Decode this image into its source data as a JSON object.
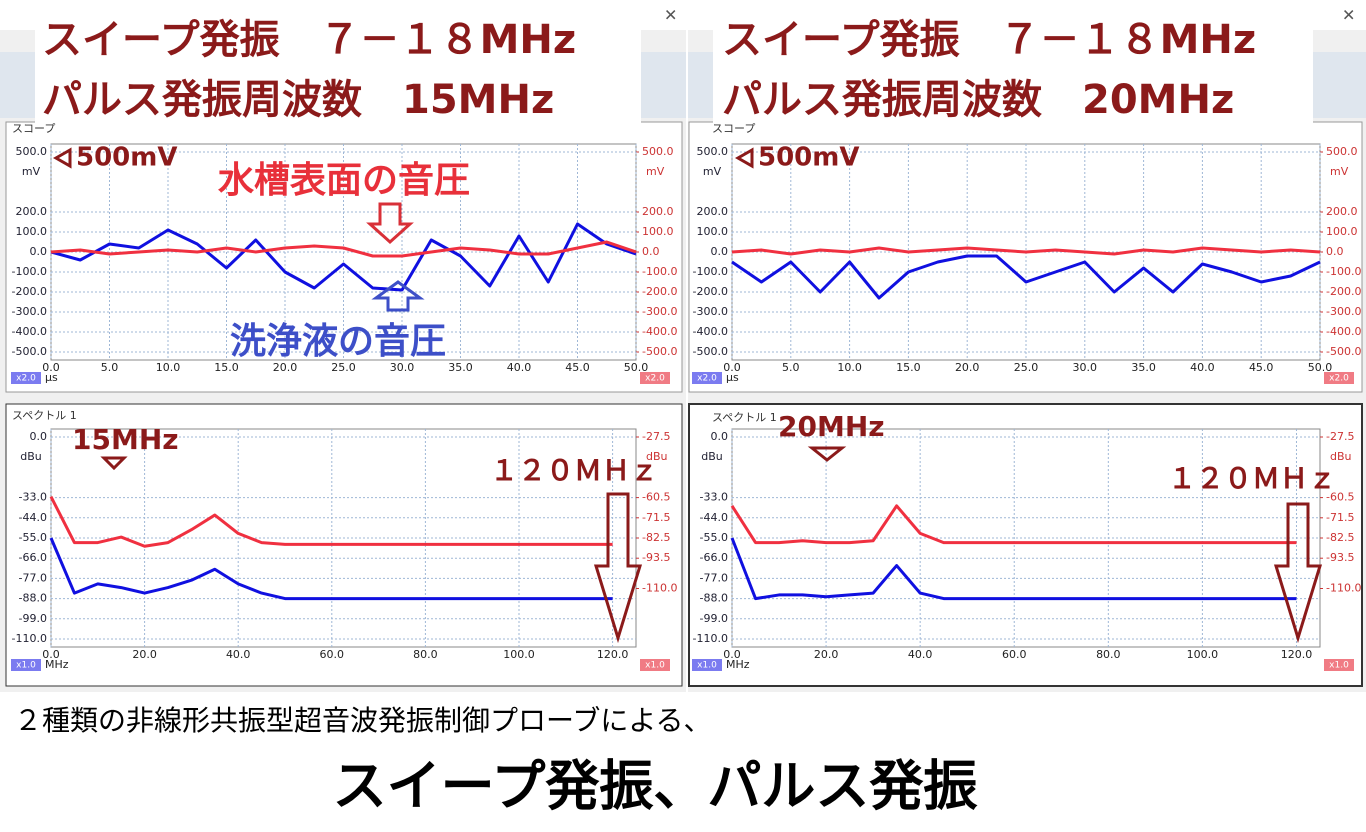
{
  "panels": [
    {
      "title": [
        "スイープ発振　７－１８MHz",
        "パルス発振周波数　15MHz"
      ]
    },
    {
      "title": [
        "スイープ発振　７－１８MHz",
        "パルス発振周波数　20MHz"
      ]
    }
  ],
  "footer": {
    "line1": "２種類の非線形共振型超音波発振制御プローブによる、",
    "line2": "スイープ発振、パルス発振"
  },
  "chart_data": [
    {
      "type": "line",
      "tab": "スコープ",
      "xlabel": "μs",
      "ylabel": "mV",
      "y2label": "mV",
      "scale_labels": [
        "x2.0",
        "x2.0"
      ],
      "x": [
        0,
        2.5,
        5,
        7.5,
        10,
        12.5,
        15,
        17.5,
        20,
        22.5,
        25,
        27.5,
        30,
        32.5,
        35,
        37.5,
        40,
        42.5,
        45,
        47.5,
        50
      ],
      "xlim": [
        0,
        50
      ],
      "xticks": [
        {
          "value": 0,
          "label": "0.0"
        },
        {
          "value": 5,
          "label": "5.0"
        },
        {
          "value": 10,
          "label": "10.0"
        },
        {
          "value": 15,
          "label": "15.0"
        },
        {
          "value": 20,
          "label": "20.0"
        },
        {
          "value": 25,
          "label": "25.0"
        },
        {
          "value": 30,
          "label": "30.0"
        },
        {
          "value": 35,
          "label": "35.0"
        },
        {
          "value": 40,
          "label": "40.0"
        },
        {
          "value": 45,
          "label": "45.0"
        },
        {
          "value": 50,
          "label": "50.0"
        }
      ],
      "ylim": [
        -500,
        500
      ],
      "yticks": [
        {
          "value": 500,
          "label": "500.0"
        },
        {
          "value": 200,
          "label": "200.0"
        },
        {
          "value": 100,
          "label": "100.0"
        },
        {
          "value": 0,
          "label": "0.0"
        },
        {
          "value": -100,
          "label": "-100.0"
        },
        {
          "value": -200,
          "label": "-200.0"
        },
        {
          "value": -300,
          "label": "-300.0"
        },
        {
          "value": -400,
          "label": "-400.0"
        },
        {
          "value": -500,
          "label": "-500.0"
        }
      ],
      "y2lim": [
        -500,
        500
      ],
      "y2ticks": [
        {
          "value": 500,
          "label": "500.0"
        },
        {
          "value": 200,
          "label": "200.0"
        },
        {
          "value": 100,
          "label": "100.0"
        },
        {
          "value": 0,
          "label": "0.0"
        },
        {
          "value": -100,
          "label": "-100.0"
        },
        {
          "value": -200,
          "label": "-200.0"
        },
        {
          "value": -300,
          "label": "-300.0"
        },
        {
          "value": -400,
          "label": "-400.0"
        },
        {
          "value": -500,
          "label": "-500.0"
        }
      ],
      "grid": true,
      "series": [
        {
          "color": "#1010e0",
          "values": [
            0,
            -40,
            40,
            20,
            110,
            40,
            -80,
            60,
            -100,
            -180,
            -60,
            -180,
            -190,
            60,
            -20,
            -170,
            80,
            -150,
            140,
            40,
            -10
          ]
        },
        {
          "color": "#f03040",
          "axis": "y2",
          "values": [
            0,
            10,
            -10,
            0,
            10,
            0,
            20,
            0,
            20,
            30,
            20,
            -20,
            -20,
            0,
            20,
            10,
            -10,
            -10,
            20,
            50,
            0
          ]
        }
      ],
      "annotations": [
        "500mV",
        "水槽表面の音圧",
        "洗浄液の音圧"
      ]
    },
    {
      "type": "line",
      "tab": "スコープ",
      "xlabel": "μs",
      "ylabel": "mV",
      "y2label": "mV",
      "scale_labels": [
        "x2.0",
        "x2.0"
      ],
      "x": [
        0,
        2.5,
        5,
        7.5,
        10,
        12.5,
        15,
        17.5,
        20,
        22.5,
        25,
        27.5,
        30,
        32.5,
        35,
        37.5,
        40,
        42.5,
        45,
        47.5,
        50
      ],
      "xlim": [
        0,
        50
      ],
      "xticks": [
        {
          "value": 0,
          "label": "0.0"
        },
        {
          "value": 5,
          "label": "5.0"
        },
        {
          "value": 10,
          "label": "10.0"
        },
        {
          "value": 15,
          "label": "15.0"
        },
        {
          "value": 20,
          "label": "20.0"
        },
        {
          "value": 25,
          "label": "25.0"
        },
        {
          "value": 30,
          "label": "30.0"
        },
        {
          "value": 35,
          "label": "35.0"
        },
        {
          "value": 40,
          "label": "40.0"
        },
        {
          "value": 45,
          "label": "45.0"
        },
        {
          "value": 50,
          "label": "50.0"
        }
      ],
      "ylim": [
        -500,
        500
      ],
      "yticks": [
        {
          "value": 500,
          "label": "500.0"
        },
        {
          "value": 200,
          "label": "200.0"
        },
        {
          "value": 100,
          "label": "100.0"
        },
        {
          "value": 0,
          "label": "0.0"
        },
        {
          "value": -100,
          "label": "-100.0"
        },
        {
          "value": -200,
          "label": "-200.0"
        },
        {
          "value": -300,
          "label": "-300.0"
        },
        {
          "value": -400,
          "label": "-400.0"
        },
        {
          "value": -500,
          "label": "-500.0"
        }
      ],
      "y2lim": [
        -500,
        500
      ],
      "y2ticks": [
        {
          "value": 500,
          "label": "500.0"
        },
        {
          "value": 200,
          "label": "200.0"
        },
        {
          "value": 100,
          "label": "100.0"
        },
        {
          "value": 0,
          "label": "0.0"
        },
        {
          "value": -100,
          "label": "-100.0"
        },
        {
          "value": -200,
          "label": "-200.0"
        },
        {
          "value": -300,
          "label": "-300.0"
        },
        {
          "value": -400,
          "label": "-400.0"
        },
        {
          "value": -500,
          "label": "-500.0"
        }
      ],
      "grid": true,
      "series": [
        {
          "color": "#1010e0",
          "values": [
            -50,
            -150,
            -50,
            -200,
            -50,
            -230,
            -100,
            -50,
            -20,
            -20,
            -150,
            -100,
            -50,
            -200,
            -80,
            -200,
            -60,
            -100,
            -150,
            -120,
            -50
          ]
        },
        {
          "color": "#f03040",
          "axis": "y2",
          "values": [
            0,
            10,
            -10,
            10,
            0,
            20,
            0,
            10,
            20,
            10,
            0,
            10,
            0,
            -10,
            10,
            0,
            20,
            10,
            0,
            10,
            0
          ]
        }
      ],
      "annotations": [
        "500mV"
      ]
    },
    {
      "type": "line",
      "tab": "スペクトル 1",
      "xlabel": "MHz",
      "ylabel": "dBu",
      "y2label": "dBu",
      "scale_labels": [
        "x1.0",
        "x1.0"
      ],
      "x": [
        0,
        5,
        10,
        15,
        20,
        25,
        30,
        35,
        40,
        45,
        50,
        60,
        70,
        80,
        90,
        100,
        110,
        120
      ],
      "xlim": [
        0,
        125
      ],
      "xticks": [
        {
          "value": 0,
          "label": "0.0"
        },
        {
          "value": 20,
          "label": "20.0"
        },
        {
          "value": 40,
          "label": "40.0"
        },
        {
          "value": 60,
          "label": "60.0"
        },
        {
          "value": 80,
          "label": "80.0"
        },
        {
          "value": 100,
          "label": "100.0"
        },
        {
          "value": 120,
          "label": "120.0"
        }
      ],
      "ylim": [
        -110,
        0
      ],
      "yticks": [
        {
          "value": 0,
          "label": "0.0"
        },
        {
          "value": -33,
          "label": "-33.0"
        },
        {
          "value": -44,
          "label": "-44.0"
        },
        {
          "value": -55,
          "label": "-55.0"
        },
        {
          "value": -66,
          "label": "-66.0"
        },
        {
          "value": -77,
          "label": "-77.0"
        },
        {
          "value": -88,
          "label": "-88.0"
        },
        {
          "value": -99,
          "label": "-99.0"
        },
        {
          "value": -110,
          "label": "-110.0"
        }
      ],
      "y2lim": [
        -137.5,
        -27.5
      ],
      "y2ticks": [
        -27.5,
        -60.5,
        -71.5,
        -82.5,
        -93.5,
        {
          "value": -110,
          "label": "-110.0"
        }
      ],
      "grid": true,
      "series": [
        {
          "color": "#f03040",
          "axis": "y2",
          "values": [
            -60,
            -85,
            -85,
            -82,
            -87,
            -85,
            -78,
            -70,
            -80,
            -85,
            -86,
            -86,
            -86,
            -86,
            -86,
            -86,
            -86,
            -86
          ]
        },
        {
          "color": "#1010e0",
          "values": [
            -55,
            -85,
            -80,
            -82,
            -85,
            -82,
            -78,
            -72,
            -80,
            -85,
            -88,
            -88,
            -88,
            -88,
            -88,
            -88,
            -88,
            -88
          ]
        }
      ],
      "annotations": [
        "15MHz",
        "１２０ＭＨｚ"
      ]
    },
    {
      "type": "line",
      "tab": "スペクトル 1",
      "xlabel": "MHz",
      "ylabel": "dBu",
      "y2label": "dBu",
      "scale_labels": [
        "x1.0",
        "x1.0"
      ],
      "x": [
        0,
        5,
        10,
        15,
        20,
        25,
        30,
        35,
        40,
        45,
        50,
        60,
        70,
        80,
        90,
        100,
        110,
        120
      ],
      "xlim": [
        0,
        125
      ],
      "xticks": [
        {
          "value": 0,
          "label": "0.0"
        },
        {
          "value": 20,
          "label": "20.0"
        },
        {
          "value": 40,
          "label": "40.0"
        },
        {
          "value": 60,
          "label": "60.0"
        },
        {
          "value": 80,
          "label": "80.0"
        },
        {
          "value": 100,
          "label": "100.0"
        },
        {
          "value": 120,
          "label": "120.0"
        }
      ],
      "ylim": [
        -110,
        0
      ],
      "yticks": [
        {
          "value": 0,
          "label": "0.0"
        },
        {
          "value": -33,
          "label": "-33.0"
        },
        {
          "value": -44,
          "label": "-44.0"
        },
        {
          "value": -55,
          "label": "-55.0"
        },
        {
          "value": -66,
          "label": "-66.0"
        },
        {
          "value": -77,
          "label": "-77.0"
        },
        {
          "value": -88,
          "label": "-88.0"
        },
        {
          "value": -99,
          "label": "-99.0"
        },
        {
          "value": -110,
          "label": "-110.0"
        }
      ],
      "y2lim": [
        -137.5,
        -27.5
      ],
      "y2ticks": [
        -27.5,
        -60.5,
        -71.5,
        -82.5,
        -93.5,
        {
          "value": -110,
          "label": "-110.0"
        }
      ],
      "grid": true,
      "series": [
        {
          "color": "#f03040",
          "axis": "y2",
          "values": [
            -65,
            -85,
            -85,
            -84,
            -85,
            -85,
            -84,
            -65,
            -80,
            -85,
            -85,
            -85,
            -85,
            -85,
            -85,
            -85,
            -85,
            -85
          ]
        },
        {
          "color": "#1010e0",
          "values": [
            -55,
            -88,
            -86,
            -86,
            -87,
            -86,
            -85,
            -70,
            -85,
            -88,
            -88,
            -88,
            -88,
            -88,
            -88,
            -88,
            -88,
            -88
          ]
        }
      ],
      "annotations": [
        "20MHz",
        "１２０ＭＨｚ"
      ]
    }
  ]
}
